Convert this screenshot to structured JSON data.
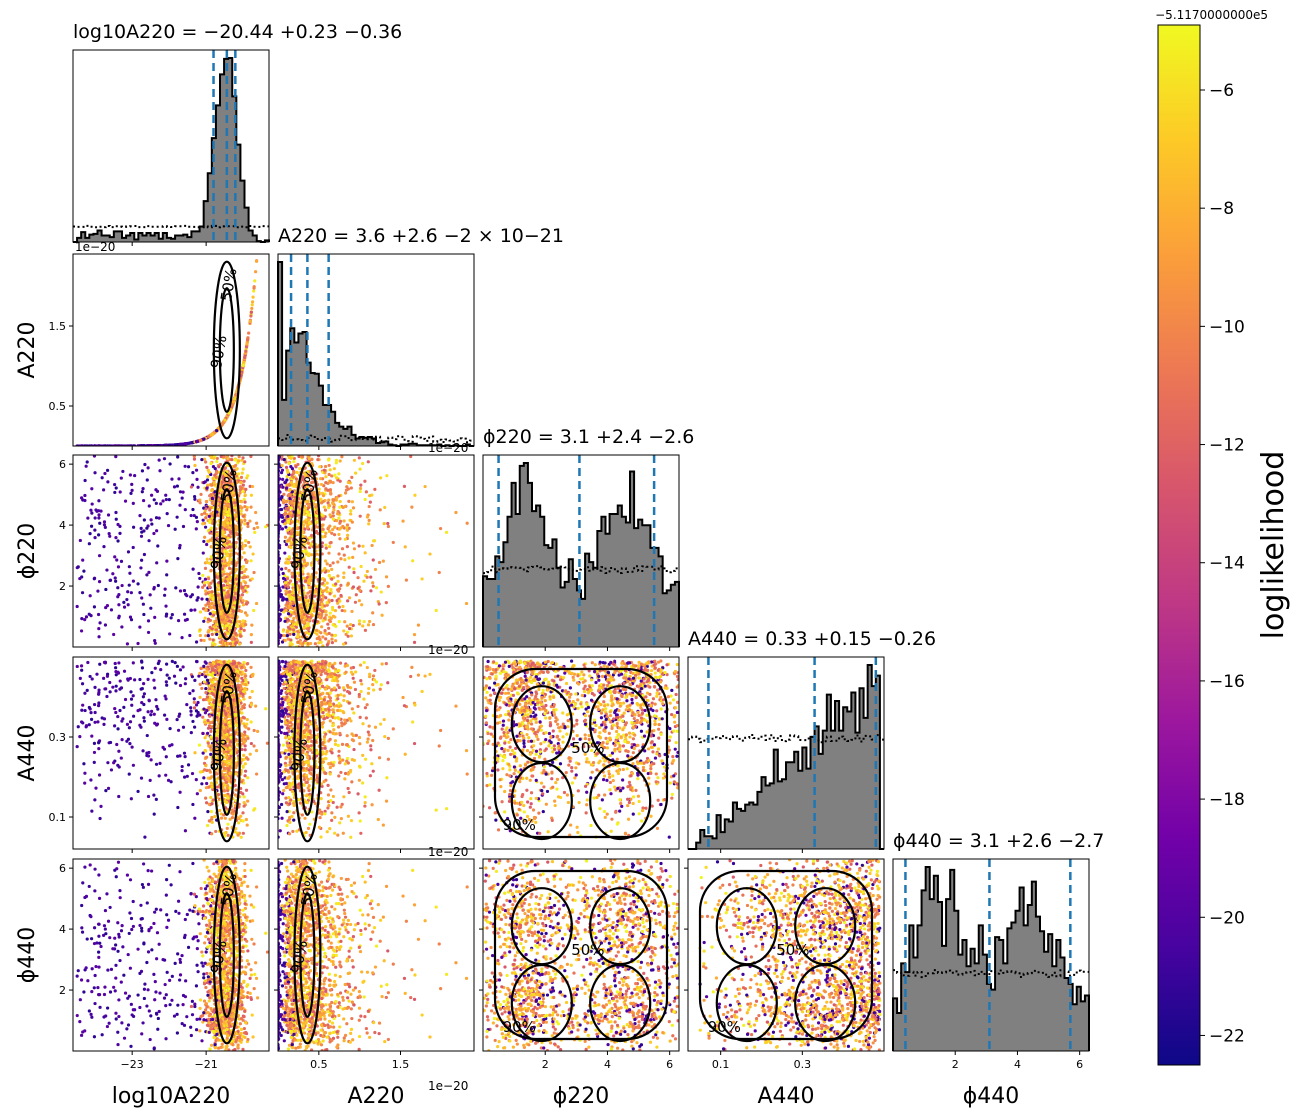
{
  "chart_data": {
    "type": "corner",
    "parameters": [
      {
        "key": "log10A220",
        "axis_label": "log10A220",
        "range": [
          -24.6,
          -19.3
        ],
        "ticks": [
          -23,
          -21
        ],
        "tick_labels": [
          "−23",
          "−21"
        ]
      },
      {
        "key": "A220",
        "axis_label": "A220",
        "range": [
          0,
          2.4
        ],
        "ticks": [
          0.5,
          1.5
        ],
        "tick_labels": [
          "0.5",
          "1.5"
        ],
        "offset_label": "1e−20"
      },
      {
        "key": "phi220",
        "axis_label": "ϕ220",
        "range": [
          0,
          6.3
        ],
        "ticks": [
          2,
          4,
          6
        ],
        "tick_labels": [
          "2",
          "4",
          "6"
        ]
      },
      {
        "key": "A440",
        "axis_label": "A440",
        "range": [
          0.02,
          0.5
        ],
        "ticks": [
          0.1,
          0.3
        ],
        "tick_labels": [
          "0.1",
          "0.3"
        ]
      },
      {
        "key": "phi440",
        "axis_label": "ϕ440",
        "range": [
          0,
          6.3
        ],
        "ticks": [
          2,
          4,
          6
        ],
        "tick_labels": [
          "2",
          "4",
          "6"
        ]
      }
    ],
    "titles": [
      {
        "param": "log10A220",
        "text": "log10A220 = −20.44 +0.23 −0.36",
        "median": -20.44,
        "plus": 0.23,
        "minus": 0.36
      },
      {
        "param": "A220",
        "text": "A220 = 3.6 +2.6 −2 × 10−21",
        "median": 3.6e-21,
        "plus": 2.6e-21,
        "minus": 2e-21
      },
      {
        "param": "phi220",
        "text": "ϕ220 = 3.1 +2.4 −2.6",
        "median": 3.1,
        "plus": 2.4,
        "minus": 2.6
      },
      {
        "param": "A440",
        "text": "A440 = 0.33 +0.15 −0.26",
        "median": 0.33,
        "plus": 0.15,
        "minus": 0.26
      },
      {
        "param": "phi440",
        "text": "ϕ440 = 3.1 +2.6 −2.7",
        "median": 3.1,
        "plus": 2.6,
        "minus": 2.7
      }
    ],
    "quantile_lines": {
      "log10A220": [
        -20.8,
        -20.44,
        -20.21
      ],
      "A220": [
        0.16,
        0.36,
        0.62
      ],
      "phi220": [
        0.5,
        3.1,
        5.5
      ],
      "A440": [
        0.07,
        0.33,
        0.48
      ],
      "phi440": [
        0.4,
        3.1,
        5.7
      ]
    },
    "contour_levels": [
      "50%",
      "90%"
    ],
    "colorbar": {
      "label": "loglikelihood",
      "colormap": "plasma",
      "range": [
        -22.5,
        -4.9
      ],
      "ticks": [
        -22,
        -20,
        -18,
        -16,
        -14,
        -12,
        -10,
        -8,
        -6
      ],
      "tick_labels": [
        "−22",
        "−20",
        "−18",
        "−16",
        "−14",
        "−12",
        "−10",
        "−8",
        "−6"
      ],
      "offset_text": "−5.1170000000e5"
    },
    "histogram_style": {
      "posterior": "filled gray with black step outline",
      "prior": "black dotted step line",
      "quantiles": "dashed blue lines"
    },
    "grid": false
  },
  "labels": {
    "ylabels": [
      "",
      "A220",
      "ϕ220",
      "A440",
      "ϕ440"
    ],
    "xlabels": [
      "log10A220",
      "A220",
      "ϕ220",
      "A440",
      "ϕ440"
    ]
  },
  "colors": {
    "quantile": "#1f77b4",
    "hist_fill": "#808080",
    "contour": "#000000",
    "plasma": [
      "#0d0887",
      "#46039f",
      "#7201a8",
      "#9c179e",
      "#bd3786",
      "#d8576b",
      "#ed7953",
      "#fb9f3a",
      "#fdca26",
      "#f0f921"
    ]
  }
}
